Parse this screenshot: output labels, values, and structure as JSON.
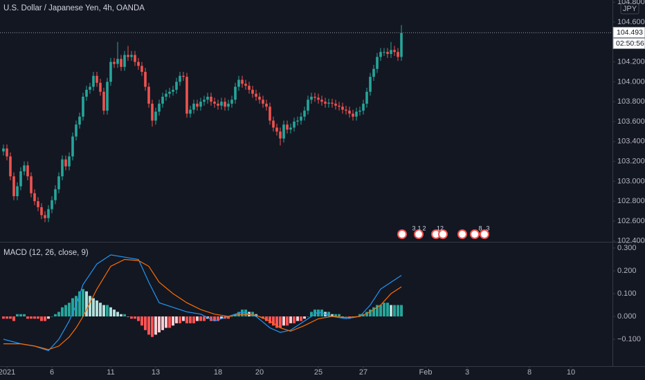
{
  "chart_data": [
    {
      "type": "candlestick",
      "title": "U.S. Dollar / Japanese Yen, 4h, OANDA",
      "currency": "JPY",
      "up_color": "#26a69a",
      "down_color": "#ef5350",
      "xlim": [
        -1,
        176
      ],
      "ylim": [
        102.4,
        104.8
      ],
      "yticks": [
        {
          "value": 102.4,
          "label": "102.400"
        },
        {
          "value": 102.6,
          "label": "102.600"
        },
        {
          "value": 102.8,
          "label": "102.800"
        },
        {
          "value": 103.0,
          "label": "103.000"
        },
        {
          "value": 103.2,
          "label": "103.200"
        },
        {
          "value": 103.4,
          "label": "103.400"
        },
        {
          "value": 103.6,
          "label": "103.600"
        },
        {
          "value": 103.8,
          "label": "103.800"
        },
        {
          "value": 104.0,
          "label": "104.000"
        },
        {
          "value": 104.2,
          "label": "104.200"
        },
        {
          "value": 104.4,
          "label": "104.400"
        },
        {
          "value": 104.6,
          "label": "104.600"
        },
        {
          "value": 104.8,
          "label": "104.800"
        }
      ],
      "grid": false,
      "last_price": 104.493,
      "countdown": "02:50:56",
      "events": [
        "3",
        "1",
        "2",
        "12",
        "8",
        "3"
      ],
      "open": [
        103.3,
        103.33,
        103.25,
        103.05,
        102.85,
        102.95,
        103.1,
        103.16,
        103.05,
        102.88,
        102.8,
        102.74,
        102.66,
        102.63,
        102.72,
        102.81,
        102.92,
        103.05,
        103.22,
        103.15,
        103.25,
        103.45,
        103.57,
        103.65,
        103.85,
        103.92,
        103.95,
        104.06,
        103.99,
        103.9,
        103.71,
        104.0,
        104.2,
        104.18,
        104.23,
        104.15,
        104.27,
        104.25,
        104.27,
        104.2,
        104.16,
        104.1,
        103.95,
        103.78,
        103.61,
        103.7,
        103.78,
        103.85,
        103.88,
        103.9,
        103.92,
        104.0,
        104.06,
        104.05,
        103.68,
        103.72,
        103.78,
        103.75,
        103.8,
        103.82,
        103.85,
        103.8,
        103.78,
        103.76,
        103.8,
        103.75,
        103.78,
        103.82,
        103.95,
        104.02,
        103.98,
        103.96,
        103.92,
        103.88,
        103.85,
        103.82,
        103.78,
        103.75,
        103.61,
        103.54,
        103.5,
        103.43,
        103.57,
        103.52,
        103.54,
        103.6,
        103.61,
        103.65,
        103.71,
        103.82,
        103.85,
        103.84,
        103.82,
        103.8,
        103.78,
        103.79,
        103.78,
        103.76,
        103.75,
        103.72,
        103.71,
        103.68,
        103.65,
        103.7,
        103.71,
        103.78,
        103.9,
        104.05,
        104.13,
        104.25,
        104.3,
        104.3,
        104.28,
        104.32,
        104.3,
        104.25
      ],
      "high": [
        103.37,
        103.37,
        103.29,
        103.09,
        102.99,
        103.14,
        103.2,
        103.2,
        103.09,
        102.92,
        102.84,
        102.78,
        102.7,
        102.76,
        102.85,
        102.96,
        103.09,
        103.26,
        103.26,
        103.29,
        103.49,
        103.61,
        103.69,
        103.89,
        103.96,
        103.99,
        104.1,
        104.1,
        104.03,
        103.94,
        104.04,
        104.24,
        104.24,
        104.4,
        104.27,
        104.31,
        104.36,
        104.31,
        104.31,
        104.24,
        104.2,
        104.14,
        103.99,
        103.82,
        103.74,
        103.82,
        103.89,
        103.92,
        103.94,
        103.96,
        104.04,
        104.1,
        104.1,
        104.09,
        103.76,
        103.82,
        103.82,
        103.84,
        103.86,
        103.89,
        103.89,
        103.84,
        103.82,
        103.84,
        103.84,
        103.82,
        103.86,
        103.99,
        104.06,
        104.06,
        104.02,
        104.0,
        103.96,
        103.92,
        103.89,
        103.86,
        103.82,
        103.79,
        103.65,
        103.58,
        103.54,
        103.61,
        103.61,
        103.58,
        103.64,
        103.65,
        103.69,
        103.75,
        103.86,
        103.89,
        103.89,
        103.88,
        103.86,
        103.84,
        103.83,
        103.83,
        103.82,
        103.8,
        103.79,
        103.76,
        103.75,
        103.72,
        103.74,
        103.75,
        103.82,
        103.94,
        104.09,
        104.17,
        104.29,
        104.34,
        104.34,
        104.34,
        104.4,
        104.36,
        104.34,
        104.57
      ],
      "low": [
        103.26,
        103.21,
        103.01,
        102.81,
        102.81,
        102.91,
        103.06,
        103.01,
        102.84,
        102.76,
        102.7,
        102.62,
        102.59,
        102.59,
        102.68,
        102.77,
        102.88,
        103.01,
        103.11,
        103.11,
        103.21,
        103.41,
        103.53,
        103.61,
        103.81,
        103.88,
        103.91,
        103.95,
        103.86,
        103.67,
        103.67,
        103.96,
        104.14,
        104.14,
        104.11,
        104.11,
        104.21,
        104.21,
        104.16,
        104.12,
        104.06,
        103.91,
        103.74,
        103.55,
        103.57,
        103.66,
        103.74,
        103.81,
        103.84,
        103.86,
        103.88,
        103.96,
        104.01,
        103.64,
        103.64,
        103.68,
        103.71,
        103.71,
        103.76,
        103.78,
        103.76,
        103.74,
        103.72,
        103.72,
        103.71,
        103.71,
        103.74,
        103.78,
        103.91,
        103.94,
        103.92,
        103.88,
        103.84,
        103.81,
        103.78,
        103.74,
        103.71,
        103.57,
        103.5,
        103.46,
        103.36,
        103.39,
        103.48,
        103.48,
        103.5,
        103.56,
        103.57,
        103.61,
        103.67,
        103.78,
        103.8,
        103.78,
        103.76,
        103.74,
        103.74,
        103.74,
        103.72,
        103.71,
        103.68,
        103.67,
        103.64,
        103.61,
        103.61,
        103.66,
        103.67,
        103.74,
        103.86,
        104.01,
        104.09,
        104.21,
        104.26,
        104.24,
        104.24,
        104.26,
        104.21,
        104.21
      ],
      "close": [
        103.33,
        103.25,
        103.05,
        102.85,
        102.95,
        103.1,
        103.16,
        103.05,
        102.88,
        102.8,
        102.74,
        102.66,
        102.63,
        102.72,
        102.81,
        102.92,
        103.05,
        103.22,
        103.15,
        103.25,
        103.45,
        103.57,
        103.65,
        103.85,
        103.92,
        103.95,
        104.06,
        103.99,
        103.9,
        103.71,
        104.0,
        104.2,
        104.18,
        104.23,
        104.15,
        104.27,
        104.25,
        104.27,
        104.2,
        104.16,
        104.1,
        103.95,
        103.78,
        103.61,
        103.7,
        103.78,
        103.85,
        103.88,
        103.9,
        103.92,
        104.0,
        104.06,
        104.05,
        103.68,
        103.72,
        103.78,
        103.75,
        103.8,
        103.82,
        103.85,
        103.8,
        103.78,
        103.76,
        103.8,
        103.75,
        103.78,
        103.82,
        103.95,
        104.02,
        103.98,
        103.96,
        103.92,
        103.88,
        103.85,
        103.82,
        103.78,
        103.75,
        103.61,
        103.54,
        103.5,
        103.43,
        103.57,
        103.52,
        103.54,
        103.6,
        103.61,
        103.65,
        103.71,
        103.82,
        103.85,
        103.84,
        103.82,
        103.8,
        103.78,
        103.79,
        103.78,
        103.76,
        103.75,
        103.72,
        103.71,
        103.68,
        103.65,
        103.7,
        103.71,
        103.78,
        103.9,
        104.05,
        104.13,
        104.25,
        104.3,
        104.3,
        104.28,
        104.32,
        104.3,
        104.25,
        104.49
      ]
    },
    {
      "type": "macd",
      "title": "MACD (12, 26, close, 9)",
      "xlim": [
        -1,
        176
      ],
      "ylim": [
        -0.2,
        0.3
      ],
      "yticks": [
        {
          "value": -0.1,
          "label": "−0.100"
        },
        {
          "value": 0,
          "label": "0.000"
        },
        {
          "value": 0.1,
          "label": "0.100"
        },
        {
          "value": 0.2,
          "label": "0.200"
        },
        {
          "value": 0.3,
          "label": "0.300"
        }
      ],
      "xticks": [
        {
          "value": 1,
          "label": "2021"
        },
        {
          "value": 14,
          "label": "6"
        },
        {
          "value": 31,
          "label": "11"
        },
        {
          "value": 44,
          "label": "13"
        },
        {
          "value": 62,
          "label": "18"
        },
        {
          "value": 74,
          "label": "20"
        },
        {
          "value": 91,
          "label": "25"
        },
        {
          "value": 104,
          "label": "27"
        },
        {
          "value": 122,
          "label": "Feb"
        },
        {
          "value": 134,
          "label": "3"
        },
        {
          "value": 152,
          "label": "8"
        },
        {
          "value": 164,
          "label": "10"
        }
      ],
      "histogram_colors": [
        "#26a69a",
        "#b2dfdb",
        "#ffcdd2",
        "#ff5252"
      ],
      "histogram": [
        -0.01,
        -0.01,
        -0.01,
        -0.02,
        0.01,
        0.01,
        0.01,
        -0.01,
        -0.01,
        -0.01,
        -0.01,
        -0.02,
        -0.02,
        -0.01,
        0.0,
        0.01,
        0.02,
        0.04,
        0.05,
        0.06,
        0.08,
        0.09,
        0.11,
        0.12,
        0.11,
        0.09,
        0.08,
        0.07,
        0.06,
        0.05,
        0.05,
        0.04,
        0.03,
        0.02,
        0.01,
        0.01,
        0.0,
        -0.01,
        -0.01,
        -0.02,
        -0.04,
        -0.06,
        -0.08,
        -0.09,
        -0.08,
        -0.07,
        -0.06,
        -0.05,
        -0.05,
        -0.04,
        -0.03,
        -0.03,
        -0.02,
        -0.03,
        -0.03,
        -0.03,
        -0.02,
        -0.02,
        -0.02,
        -0.01,
        -0.02,
        -0.02,
        -0.02,
        -0.01,
        -0.01,
        -0.01,
        0.0,
        0.01,
        0.02,
        0.03,
        0.03,
        0.02,
        0.02,
        0.01,
        0.0,
        -0.01,
        -0.02,
        -0.03,
        -0.04,
        -0.05,
        -0.05,
        -0.04,
        -0.04,
        -0.03,
        -0.03,
        -0.02,
        -0.02,
        -0.01,
        0.0,
        0.02,
        0.03,
        0.03,
        0.03,
        0.02,
        0.02,
        0.01,
        0.01,
        0.01,
        0.0,
        0.0,
        -0.01,
        0.0,
        0.0,
        0.01,
        0.01,
        0.02,
        0.03,
        0.04,
        0.05,
        0.05,
        0.06,
        0.06,
        0.05,
        0.05,
        0.05,
        0.05
      ],
      "x": [
        0,
        5,
        9,
        13,
        16,
        19,
        21,
        23,
        27,
        31,
        35,
        39,
        42,
        45,
        49,
        53,
        57,
        61,
        65,
        69,
        73,
        77,
        80,
        83,
        87,
        91,
        95,
        99,
        103,
        106,
        109,
        112,
        115
      ],
      "series": [
        {
          "color": "#2196f3",
          "values": [
            -0.1,
            -0.12,
            -0.13,
            -0.15,
            -0.1,
            -0.02,
            0.05,
            0.14,
            0.23,
            0.27,
            0.26,
            0.25,
            0.15,
            0.06,
            0.04,
            0.02,
            0.01,
            -0.02,
            0.0,
            0.02,
            0.0,
            -0.05,
            -0.07,
            -0.06,
            -0.02,
            0.02,
            0.0,
            -0.01,
            0.0,
            0.05,
            0.12,
            0.15,
            0.18
          ]
        },
        {
          "color": "#ff6d00",
          "values": [
            -0.12,
            -0.12,
            -0.13,
            -0.145,
            -0.13,
            -0.09,
            -0.05,
            0.0,
            0.12,
            0.22,
            0.25,
            0.245,
            0.22,
            0.15,
            0.1,
            0.06,
            0.03,
            0.01,
            0.0,
            0.01,
            0.005,
            -0.02,
            -0.05,
            -0.065,
            -0.04,
            -0.01,
            0.0,
            -0.005,
            0.0,
            0.02,
            0.05,
            0.1,
            0.13
          ]
        }
      ]
    }
  ]
}
